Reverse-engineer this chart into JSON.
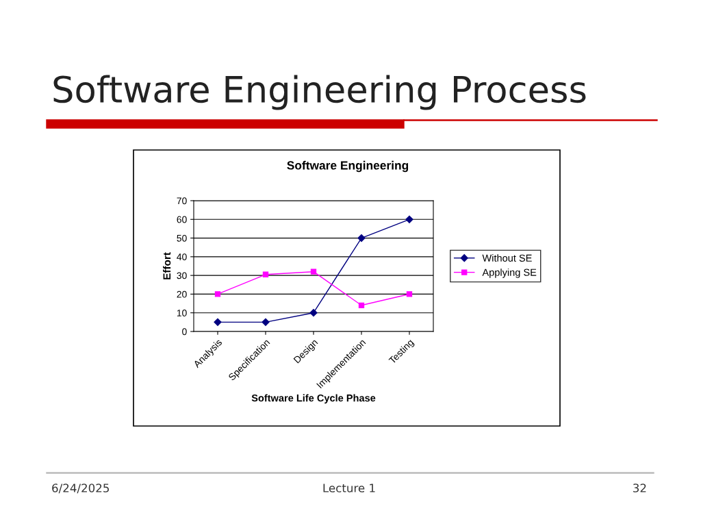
{
  "chart_data": {
    "type": "line",
    "title": "Software Engineering Process",
    "subtitle": "Software Engineering",
    "xlabel": "Software Life Cycle Phase",
    "ylabel": "Effort",
    "categories": [
      "Analysis",
      "Specification",
      "Design",
      "Implementation",
      "Testing"
    ],
    "series": [
      {
        "name": "Without SE",
        "color": "#000080",
        "marker": "diamond",
        "values": [
          5,
          5,
          10,
          50,
          60
        ]
      },
      {
        "name": "Applying SE",
        "color": "#ff00ff",
        "marker": "square",
        "values": [
          20,
          30.5,
          32,
          14,
          20
        ]
      }
    ],
    "ylim": [
      0,
      70
    ],
    "yticks": [
      0,
      10,
      20,
      30,
      40,
      50,
      60,
      70
    ],
    "grid": "y",
    "legend": "right",
    "annotations": [
      "6/24/2025",
      "Lecture 1",
      "32"
    ]
  }
}
